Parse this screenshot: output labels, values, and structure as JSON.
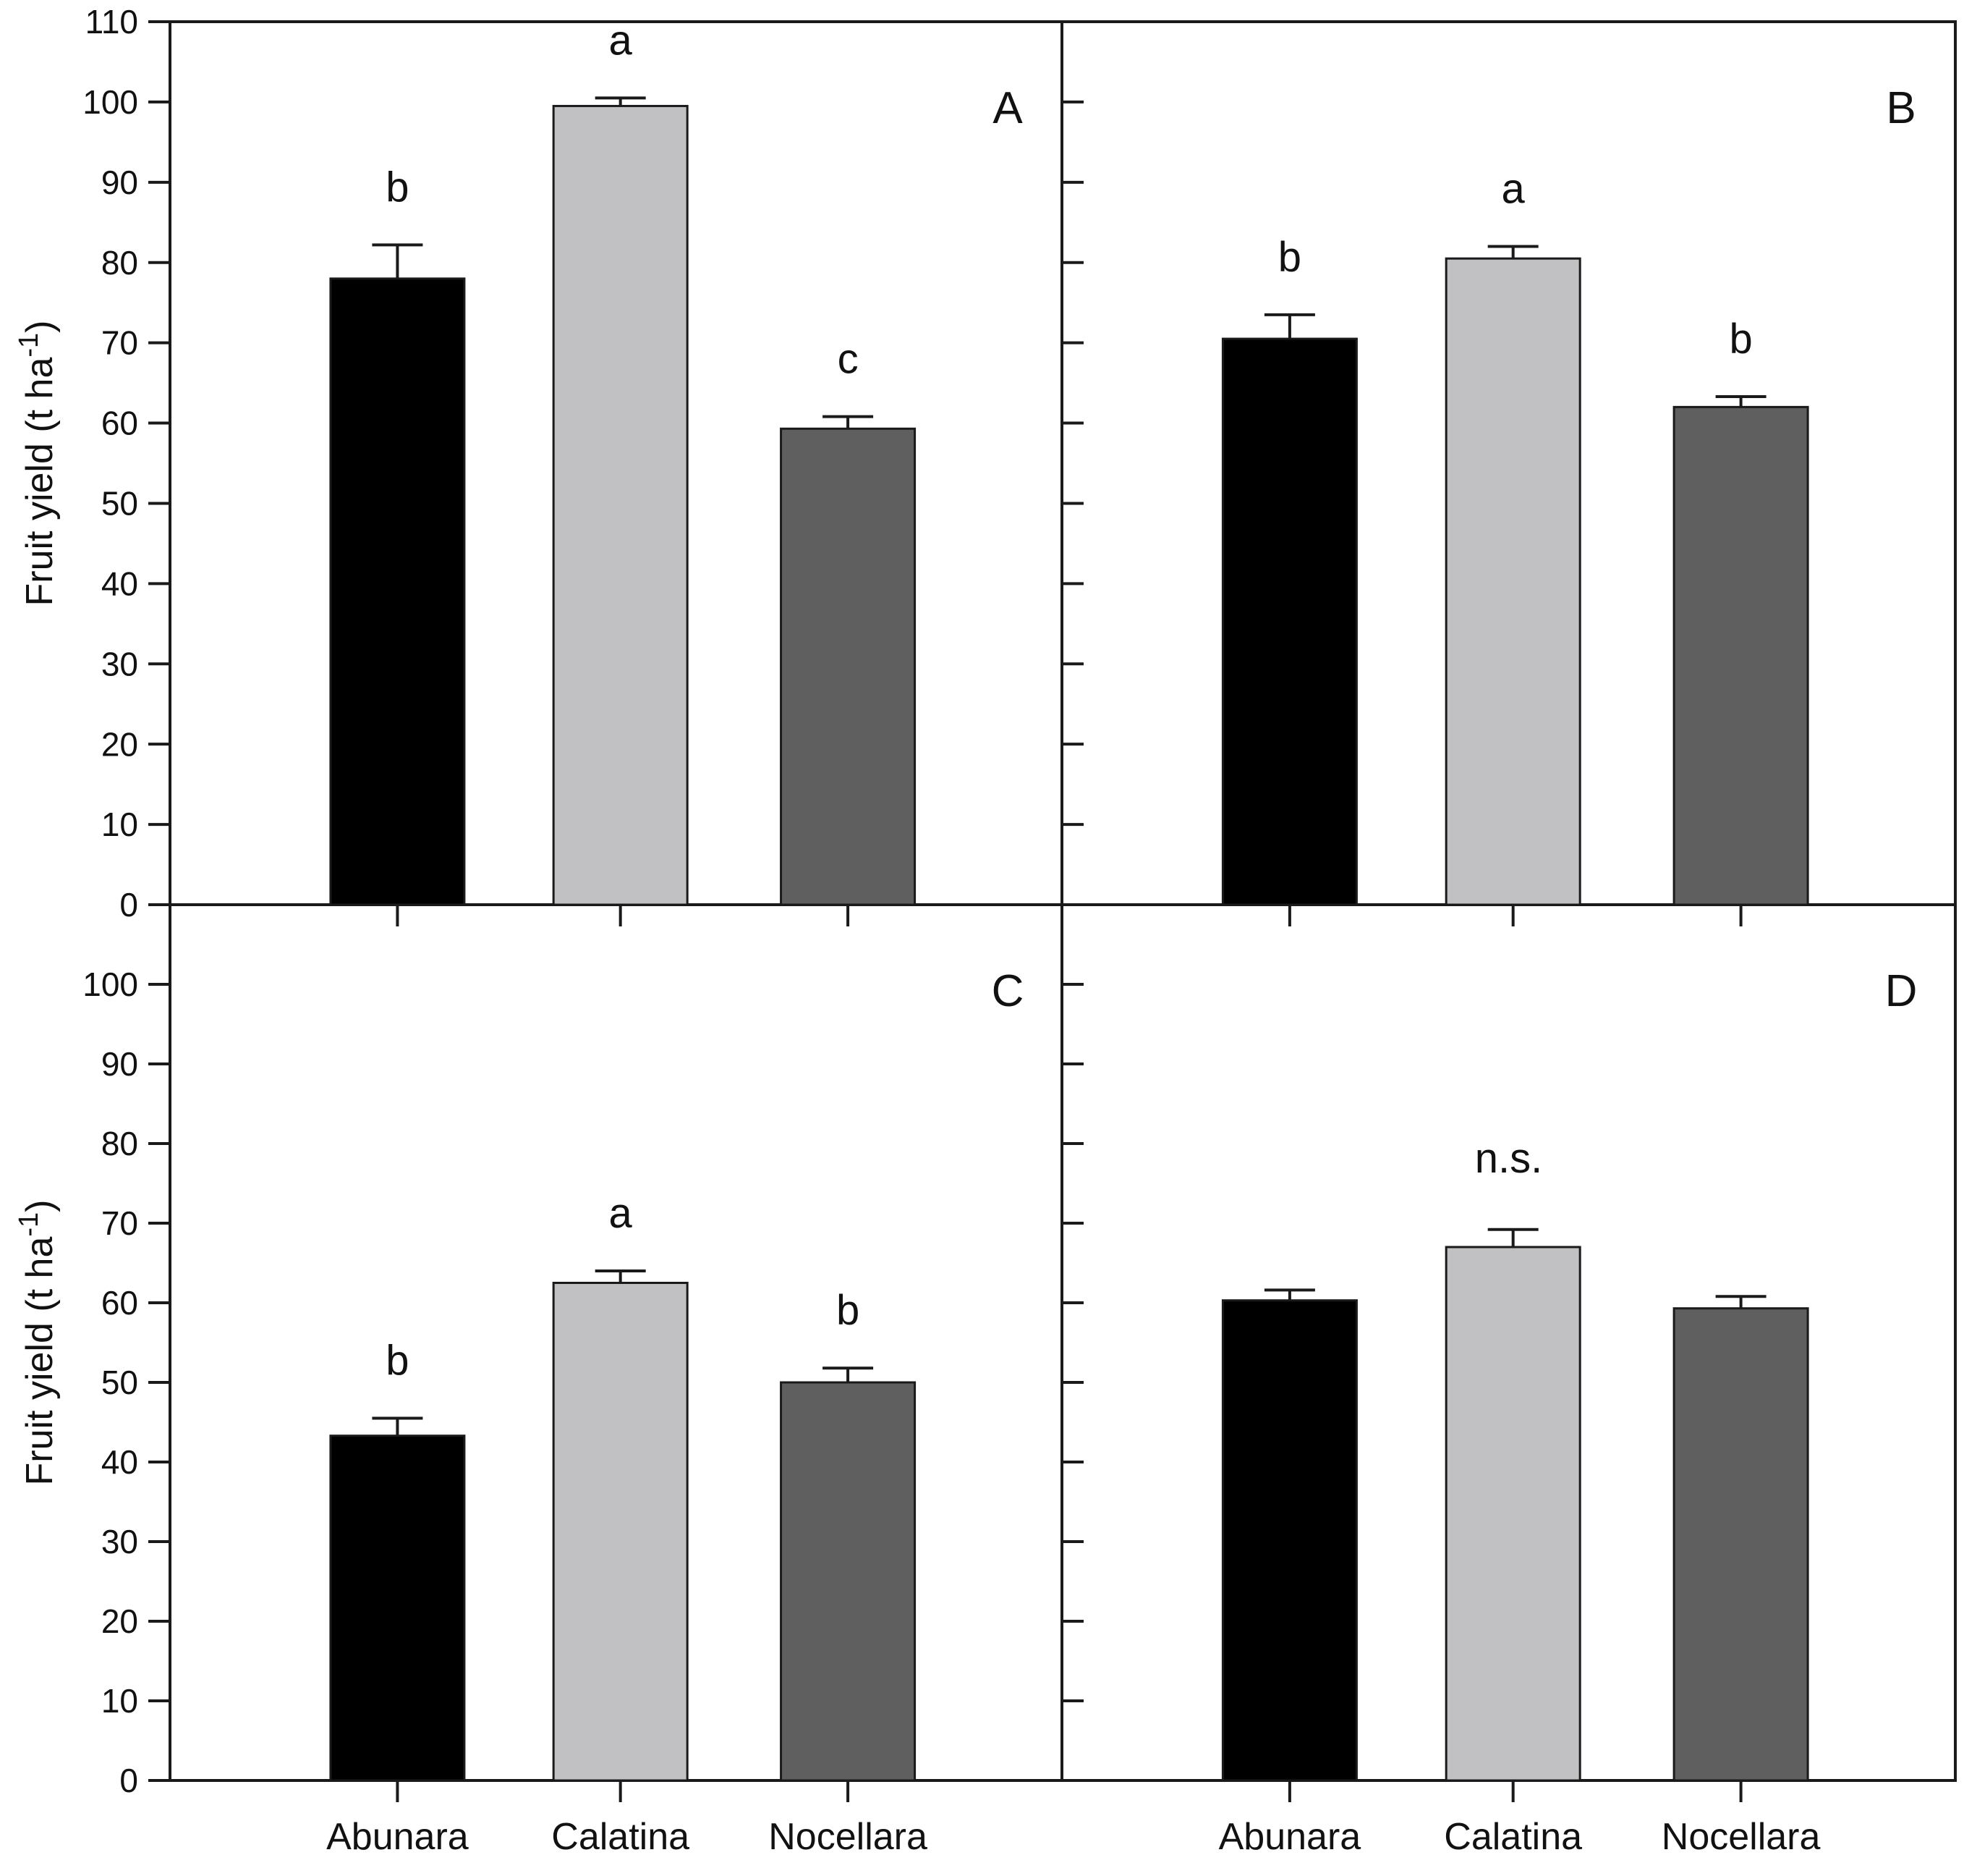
{
  "figure": {
    "background": "#ffffff",
    "frame_color": "#1a1a1a",
    "y_axis_label": {
      "main": "Fruit yield (t ha",
      "sup": "-1",
      "close": ")"
    }
  },
  "chart_data": {
    "type": "bar",
    "title": "",
    "categories": [
      "Abunara",
      "Calatina",
      "Nocellara"
    ],
    "bar_colors": [
      "#000000",
      "#c1c1c3",
      "#5f5f5f"
    ],
    "bar_edge_color": "#1a1a1a",
    "error_bar_color": "#1a1a1a",
    "ylabel": "Fruit yield (t ha-1)",
    "ylim": [
      0,
      110
    ],
    "ytick_step": 10,
    "grid": "off",
    "legend": "none",
    "ytick_labels_top_row": [
      "0",
      "10",
      "20",
      "30",
      "40",
      "50",
      "60",
      "70",
      "80",
      "90",
      "100",
      "110"
    ],
    "ytick_labels_bottom_row": [
      "0",
      "10",
      "20",
      "30",
      "40",
      "50",
      "60",
      "70",
      "80",
      "90",
      "100"
    ],
    "panels": [
      {
        "label": "A",
        "row": 0,
        "col": 0,
        "values": [
          78.0,
          99.5,
          59.3
        ],
        "errors": [
          4.2,
          1.0,
          1.5
        ],
        "sig_letters": [
          "b",
          "a",
          "c"
        ],
        "annotation": ""
      },
      {
        "label": "B",
        "row": 0,
        "col": 1,
        "values": [
          70.5,
          80.5,
          62.0
        ],
        "errors": [
          3.0,
          1.5,
          1.3
        ],
        "sig_letters": [
          "b",
          "a",
          "b"
        ],
        "annotation": ""
      },
      {
        "label": "C",
        "row": 1,
        "col": 0,
        "values": [
          43.3,
          62.5,
          50.0
        ],
        "errors": [
          2.2,
          1.5,
          1.8
        ],
        "sig_letters": [
          "b",
          "a",
          "b"
        ],
        "annotation": ""
      },
      {
        "label": "D",
        "row": 1,
        "col": 1,
        "values": [
          60.3,
          67.0,
          59.3
        ],
        "errors": [
          1.3,
          2.2,
          1.5
        ],
        "sig_letters": [
          "",
          "",
          ""
        ],
        "annotation": "n.s."
      }
    ]
  }
}
